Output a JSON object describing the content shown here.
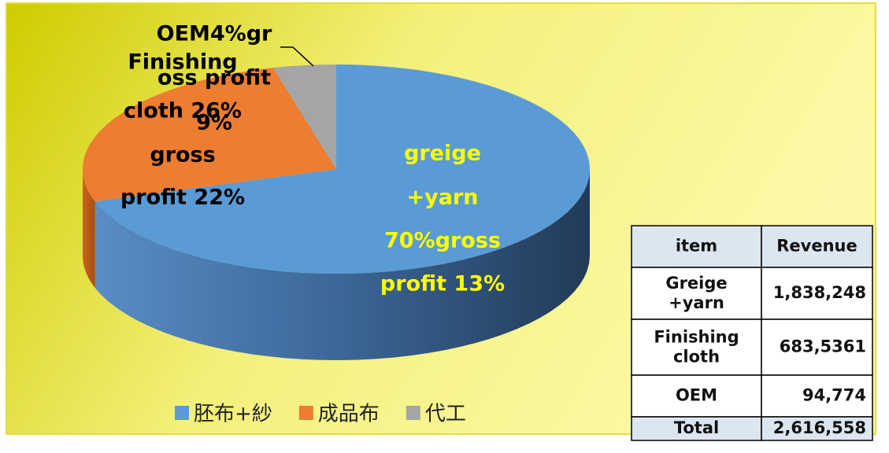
{
  "chart_data": {
    "type": "pie3d",
    "categories": [
      "胚布+紗",
      "成品布",
      "代工"
    ],
    "values": [
      70,
      26,
      4
    ],
    "value_labels": [
      [
        "greige",
        "+yarn",
        "70%gross",
        "profit 13%"
      ],
      [
        "Finishing",
        "cloth 26%",
        "gross",
        "profit 22%"
      ],
      [
        "OEM4%gr",
        "oss profit",
        "9%"
      ]
    ],
    "colors": [
      "#5b9bd5",
      "#ed7d31",
      "#a5a5a5"
    ],
    "legend": "bottom"
  },
  "table": {
    "header": [
      "item",
      "Revenue"
    ],
    "rows": [
      [
        "Greige +yarn",
        "1,838,248"
      ],
      [
        "Finishing cloth",
        "683,5361"
      ],
      [
        "OEM",
        "94,774"
      ],
      [
        "Total",
        "2,616,558"
      ]
    ]
  }
}
